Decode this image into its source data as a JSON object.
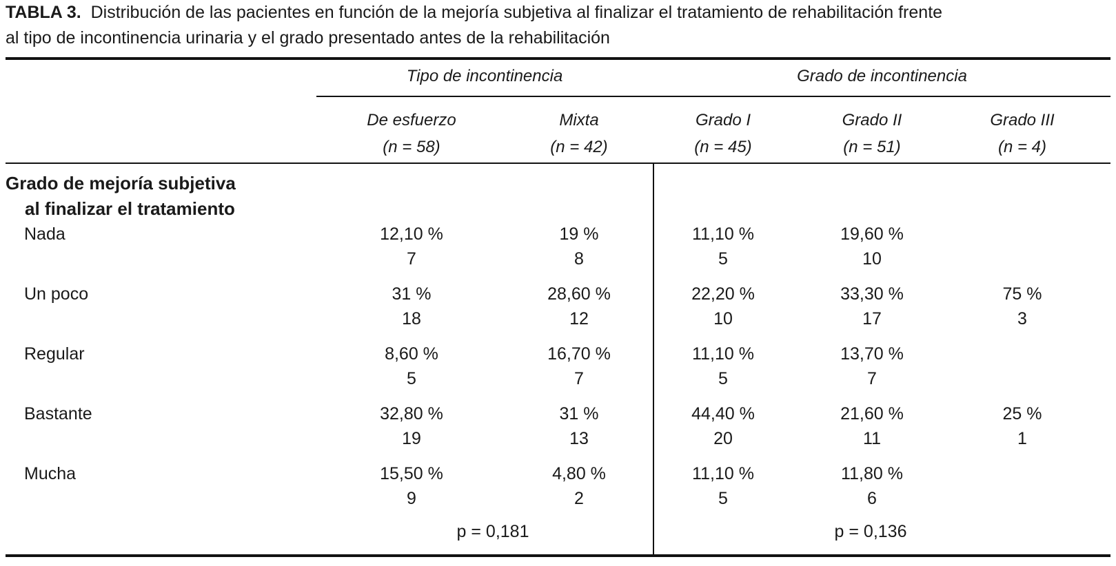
{
  "caption": {
    "label": "TABLA 3.",
    "text_line1": "Distribución de las pacientes en función de la mejoría subjetiva al finalizar el tratamiento de rehabilitación frente",
    "text_line2": "al tipo de incontinencia urinaria y el grado presentado antes de la rehabilitación"
  },
  "groups": {
    "tipo": "Tipo de incontinencia",
    "grado": "Grado de incontinencia"
  },
  "columns": [
    {
      "name": "De esfuerzo",
      "n": "(n = 58)"
    },
    {
      "name": "Mixta",
      "n": "(n = 42)"
    },
    {
      "name": "Grado I",
      "n": "(n = 45)"
    },
    {
      "name": "Grado II",
      "n": "(n = 51)"
    },
    {
      "name": "Grado III",
      "n": "(n = 4)"
    }
  ],
  "section": {
    "line1": "Grado de mejoría subjetiva",
    "line2": "al finalizar el tratamiento"
  },
  "rows": [
    {
      "label": "Nada",
      "cells": [
        {
          "pct": "12,10 %",
          "n": "7"
        },
        {
          "pct": "19 %",
          "n": "8"
        },
        {
          "pct": "11,10 %",
          "n": "5"
        },
        {
          "pct": "19,60 %",
          "n": "10"
        },
        {
          "pct": "",
          "n": ""
        }
      ]
    },
    {
      "label": "Un poco",
      "cells": [
        {
          "pct": "31 %",
          "n": "18"
        },
        {
          "pct": "28,60 %",
          "n": "12"
        },
        {
          "pct": "22,20 %",
          "n": "10"
        },
        {
          "pct": "33,30 %",
          "n": "17"
        },
        {
          "pct": "75 %",
          "n": "3"
        }
      ]
    },
    {
      "label": "Regular",
      "cells": [
        {
          "pct": "8,60 %",
          "n": "5"
        },
        {
          "pct": "16,70 %",
          "n": "7"
        },
        {
          "pct": "11,10 %",
          "n": "5"
        },
        {
          "pct": "13,70 %",
          "n": "7"
        },
        {
          "pct": "",
          "n": ""
        }
      ]
    },
    {
      "label": "Bastante",
      "cells": [
        {
          "pct": "32,80 %",
          "n": "19"
        },
        {
          "pct": "31 %",
          "n": "13"
        },
        {
          "pct": "44,40 %",
          "n": "20"
        },
        {
          "pct": "21,60 %",
          "n": "11"
        },
        {
          "pct": "25 %",
          "n": "1"
        }
      ]
    },
    {
      "label": "Mucha",
      "cells": [
        {
          "pct": "15,50 %",
          "n": "9"
        },
        {
          "pct": "4,80 %",
          "n": "2"
        },
        {
          "pct": "11,10 %",
          "n": "5"
        },
        {
          "pct": "11,80 %",
          "n": "6"
        },
        {
          "pct": "",
          "n": ""
        }
      ]
    }
  ],
  "p_values": {
    "tipo": "p = 0,181",
    "grado": "p = 0,136"
  }
}
